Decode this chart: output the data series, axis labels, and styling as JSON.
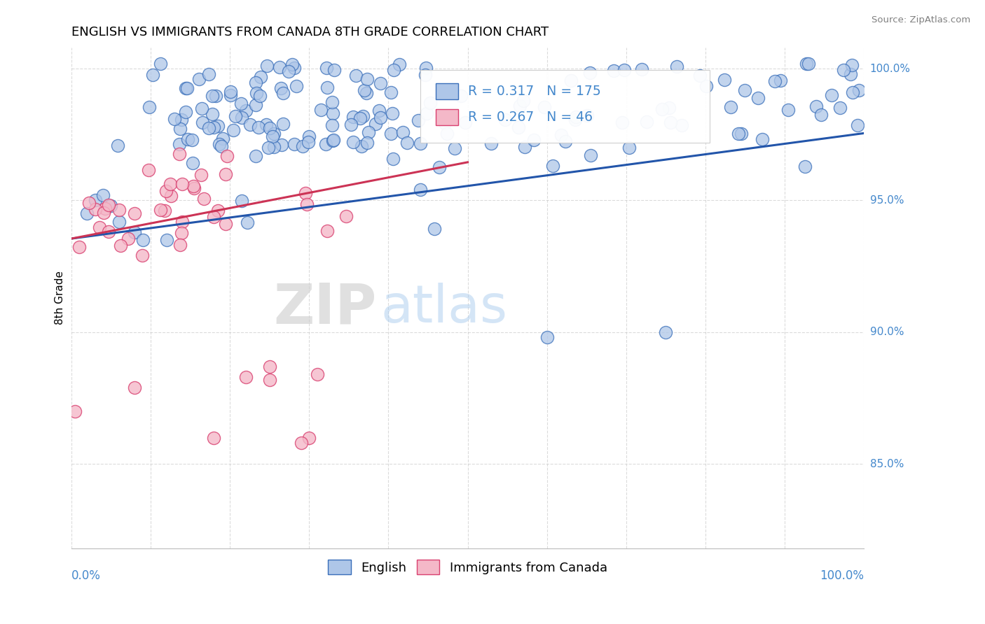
{
  "title": "ENGLISH VS IMMIGRANTS FROM CANADA 8TH GRADE CORRELATION CHART",
  "source": "Source: ZipAtlas.com",
  "ylabel": "8th Grade",
  "ylabel_right_ticks": [
    0.85,
    0.9,
    0.95,
    1.0
  ],
  "ylabel_right_labels": [
    "85.0%",
    "90.0%",
    "95.0%",
    "100.0%"
  ],
  "xmin": 0.0,
  "xmax": 1.0,
  "ymin": 0.818,
  "ymax": 1.008,
  "watermark_zip": "ZIP",
  "watermark_atlas": "atlas",
  "legend_english": "English",
  "legend_immigrants": "Immigrants from Canada",
  "R_english": 0.317,
  "N_english": 175,
  "R_immigrants": 0.267,
  "N_immigrants": 46,
  "color_english_face": "#aec6e8",
  "color_english_edge": "#3a6fba",
  "color_immigrants_face": "#f4b8c8",
  "color_immigrants_edge": "#d94070",
  "color_english_line": "#2255aa",
  "color_immigrants_line": "#cc3355",
  "color_axis_labels": "#4488cc",
  "color_title": "#000000",
  "background_color": "#ffffff",
  "grid_color": "#cccccc",
  "eng_trend_x0": 0.0,
  "eng_trend_y0": 0.9355,
  "eng_trend_x1": 1.0,
  "eng_trend_y1": 0.9755,
  "imm_trend_x0": 0.0,
  "imm_trend_y0": 0.9355,
  "imm_trend_x1": 0.5,
  "imm_trend_y1": 0.9645
}
